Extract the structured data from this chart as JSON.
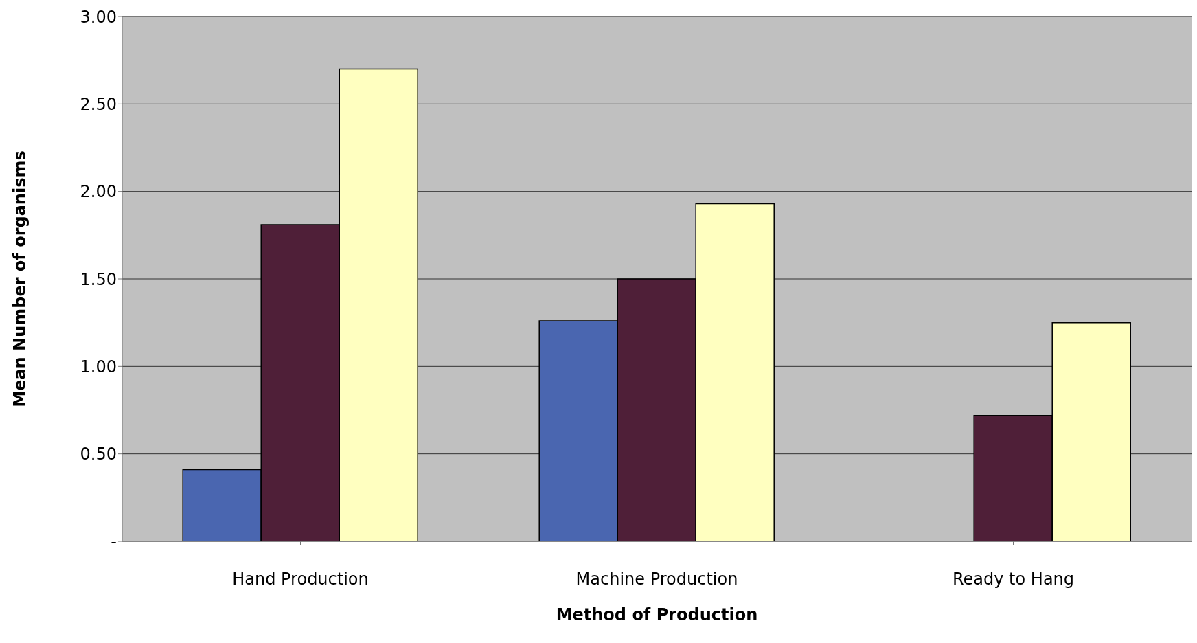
{
  "chart_data": {
    "type": "bar",
    "xlabel": "Method of Production",
    "ylabel": "Mean Number of organisms",
    "categories": [
      "Hand Production",
      "Machine Production",
      "Ready to Hang"
    ],
    "series": [
      {
        "color": "#4a66b0",
        "values": [
          0.41,
          1.26,
          0
        ]
      },
      {
        "color": "#4f1f38",
        "values": [
          1.81,
          1.5,
          0.72
        ]
      },
      {
        "color": "#ffffc0",
        "values": [
          2.7,
          1.93,
          1.25
        ]
      }
    ],
    "ylim": [
      0,
      3
    ],
    "yticks": [
      {
        "value": 0,
        "label": "-"
      },
      {
        "value": 0.5,
        "label": "0.50"
      },
      {
        "value": 1,
        "label": "1.00"
      },
      {
        "value": 1.5,
        "label": "1.50"
      },
      {
        "value": 2,
        "label": "2.00"
      },
      {
        "value": 2.5,
        "label": "2.50"
      },
      {
        "value": 3,
        "label": "3.00"
      }
    ],
    "grid": "y"
  }
}
